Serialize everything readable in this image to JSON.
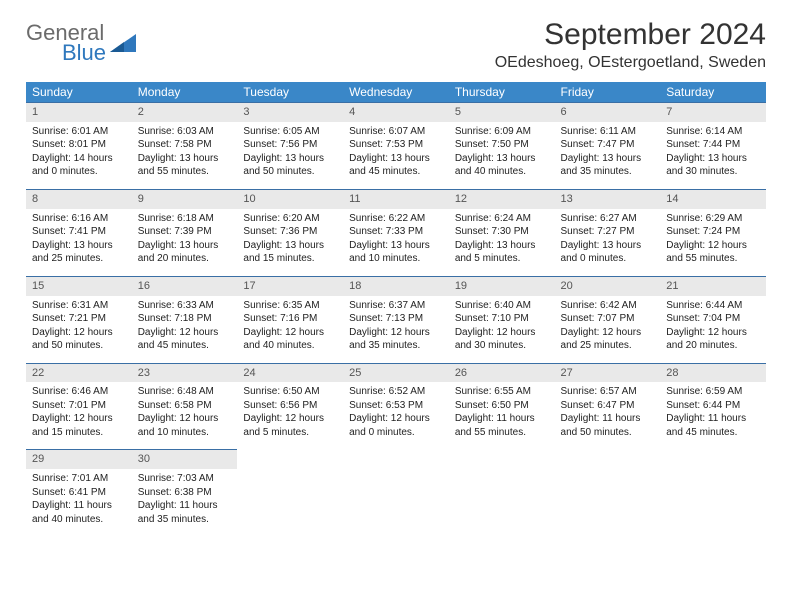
{
  "logo": {
    "textGray": "General",
    "textBlue": "Blue"
  },
  "header": {
    "monthTitle": "September 2024",
    "location": "OEdeshoeg, OEstergoetland, Sweden"
  },
  "calendar": {
    "header_bg": "#3a87c8",
    "header_fg": "#ffffff",
    "daynum_bg": "#e9e9e9",
    "border_color": "#3a6fa5",
    "dayNames": [
      "Sunday",
      "Monday",
      "Tuesday",
      "Wednesday",
      "Thursday",
      "Friday",
      "Saturday"
    ],
    "days": [
      {
        "n": "1",
        "sr": "6:01 AM",
        "ss": "8:01 PM",
        "dl": "14 hours and 0 minutes."
      },
      {
        "n": "2",
        "sr": "6:03 AM",
        "ss": "7:58 PM",
        "dl": "13 hours and 55 minutes."
      },
      {
        "n": "3",
        "sr": "6:05 AM",
        "ss": "7:56 PM",
        "dl": "13 hours and 50 minutes."
      },
      {
        "n": "4",
        "sr": "6:07 AM",
        "ss": "7:53 PM",
        "dl": "13 hours and 45 minutes."
      },
      {
        "n": "5",
        "sr": "6:09 AM",
        "ss": "7:50 PM",
        "dl": "13 hours and 40 minutes."
      },
      {
        "n": "6",
        "sr": "6:11 AM",
        "ss": "7:47 PM",
        "dl": "13 hours and 35 minutes."
      },
      {
        "n": "7",
        "sr": "6:14 AM",
        "ss": "7:44 PM",
        "dl": "13 hours and 30 minutes."
      },
      {
        "n": "8",
        "sr": "6:16 AM",
        "ss": "7:41 PM",
        "dl": "13 hours and 25 minutes."
      },
      {
        "n": "9",
        "sr": "6:18 AM",
        "ss": "7:39 PM",
        "dl": "13 hours and 20 minutes."
      },
      {
        "n": "10",
        "sr": "6:20 AM",
        "ss": "7:36 PM",
        "dl": "13 hours and 15 minutes."
      },
      {
        "n": "11",
        "sr": "6:22 AM",
        "ss": "7:33 PM",
        "dl": "13 hours and 10 minutes."
      },
      {
        "n": "12",
        "sr": "6:24 AM",
        "ss": "7:30 PM",
        "dl": "13 hours and 5 minutes."
      },
      {
        "n": "13",
        "sr": "6:27 AM",
        "ss": "7:27 PM",
        "dl": "13 hours and 0 minutes."
      },
      {
        "n": "14",
        "sr": "6:29 AM",
        "ss": "7:24 PM",
        "dl": "12 hours and 55 minutes."
      },
      {
        "n": "15",
        "sr": "6:31 AM",
        "ss": "7:21 PM",
        "dl": "12 hours and 50 minutes."
      },
      {
        "n": "16",
        "sr": "6:33 AM",
        "ss": "7:18 PM",
        "dl": "12 hours and 45 minutes."
      },
      {
        "n": "17",
        "sr": "6:35 AM",
        "ss": "7:16 PM",
        "dl": "12 hours and 40 minutes."
      },
      {
        "n": "18",
        "sr": "6:37 AM",
        "ss": "7:13 PM",
        "dl": "12 hours and 35 minutes."
      },
      {
        "n": "19",
        "sr": "6:40 AM",
        "ss": "7:10 PM",
        "dl": "12 hours and 30 minutes."
      },
      {
        "n": "20",
        "sr": "6:42 AM",
        "ss": "7:07 PM",
        "dl": "12 hours and 25 minutes."
      },
      {
        "n": "21",
        "sr": "6:44 AM",
        "ss": "7:04 PM",
        "dl": "12 hours and 20 minutes."
      },
      {
        "n": "22",
        "sr": "6:46 AM",
        "ss": "7:01 PM",
        "dl": "12 hours and 15 minutes."
      },
      {
        "n": "23",
        "sr": "6:48 AM",
        "ss": "6:58 PM",
        "dl": "12 hours and 10 minutes."
      },
      {
        "n": "24",
        "sr": "6:50 AM",
        "ss": "6:56 PM",
        "dl": "12 hours and 5 minutes."
      },
      {
        "n": "25",
        "sr": "6:52 AM",
        "ss": "6:53 PM",
        "dl": "12 hours and 0 minutes."
      },
      {
        "n": "26",
        "sr": "6:55 AM",
        "ss": "6:50 PM",
        "dl": "11 hours and 55 minutes."
      },
      {
        "n": "27",
        "sr": "6:57 AM",
        "ss": "6:47 PM",
        "dl": "11 hours and 50 minutes."
      },
      {
        "n": "28",
        "sr": "6:59 AM",
        "ss": "6:44 PM",
        "dl": "11 hours and 45 minutes."
      },
      {
        "n": "29",
        "sr": "7:01 AM",
        "ss": "6:41 PM",
        "dl": "11 hours and 40 minutes."
      },
      {
        "n": "30",
        "sr": "7:03 AM",
        "ss": "6:38 PM",
        "dl": "11 hours and 35 minutes."
      }
    ],
    "labels": {
      "sunrise": "Sunrise:",
      "sunset": "Sunset:",
      "daylight": "Daylight:"
    }
  }
}
